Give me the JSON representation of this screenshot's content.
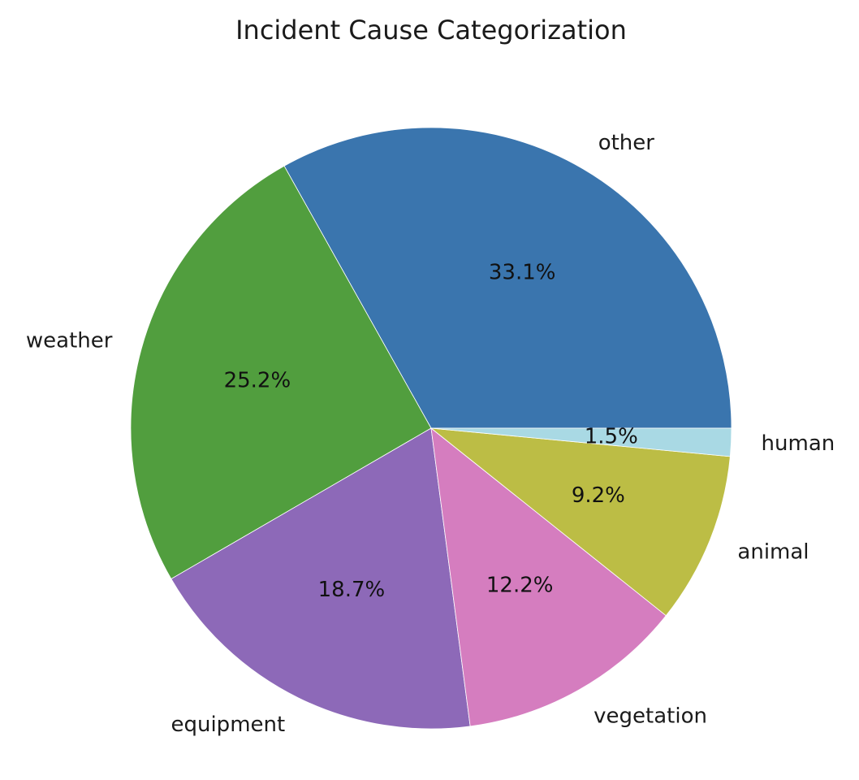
{
  "chart_data": {
    "type": "pie",
    "title": "Incident Cause Categorization",
    "start_angle_deg": 0,
    "direction": "counterclockwise",
    "slices": [
      {
        "label": "other",
        "value": 33.1,
        "pct_label": "33.1%",
        "color": "#3a75ae"
      },
      {
        "label": "weather",
        "value": 25.2,
        "pct_label": "25.2%",
        "color": "#519e3e"
      },
      {
        "label": "equipment",
        "value": 18.7,
        "pct_label": "18.7%",
        "color": "#8d69b8"
      },
      {
        "label": "vegetation",
        "value": 12.2,
        "pct_label": "12.2%",
        "color": "#d57dbf"
      },
      {
        "label": "animal",
        "value": 9.2,
        "pct_label": "9.2%",
        "color": "#bcbd45"
      },
      {
        "label": "human",
        "value": 1.5,
        "pct_label": "1.5%",
        "color": "#a9d9e4"
      }
    ]
  }
}
